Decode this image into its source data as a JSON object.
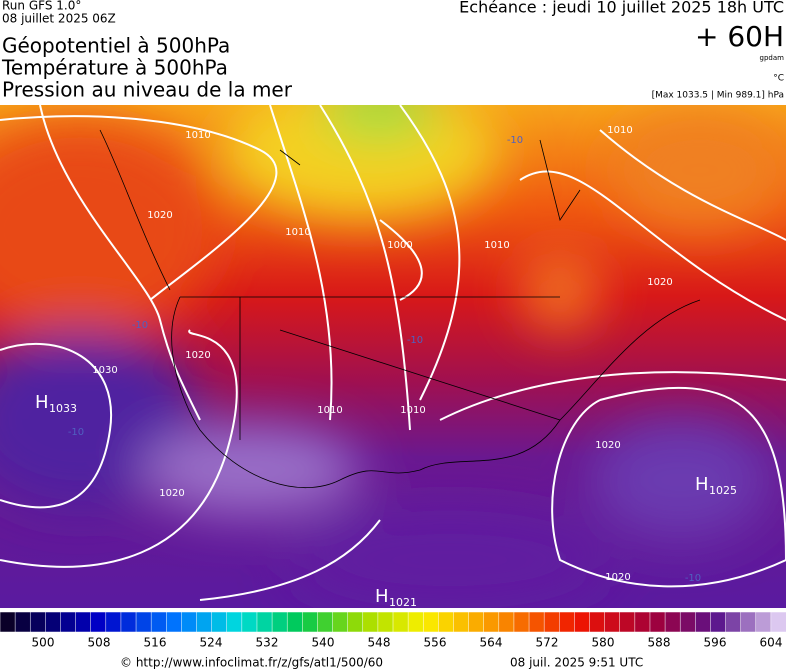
{
  "header": {
    "run": "Run GFS 1.0°",
    "run_date": "08 juillet 2025 06Z",
    "titles": [
      "Géopotentiel à 500hPa",
      "Température à 500hPa",
      "Pression au niveau de la mer"
    ],
    "echeance": "Echéance : jeudi 10 juillet 2025 18h UTC",
    "lead": "+ 60H",
    "unit_geo": "gpdam",
    "unit_temp": "°C",
    "range": "[Max 1033.5 | Min 989.1] hPa"
  },
  "map": {
    "isobar_labels": [
      "1010",
      "1020",
      "1010",
      "1000",
      "1010",
      "1020",
      "1010",
      "1020",
      "1030",
      "1010",
      "1010",
      "1020",
      "1020",
      "1020"
    ],
    "temp_labels": [
      "-10",
      "-10",
      "-10",
      "-10",
      "-10"
    ],
    "centers": [
      {
        "letter": "H",
        "value": "1033"
      },
      {
        "letter": "H",
        "value": "1025"
      },
      {
        "letter": "H",
        "value": "1021"
      }
    ]
  },
  "colorbar": {
    "labels": [
      500,
      508,
      516,
      524,
      532,
      540,
      548,
      556,
      564,
      572,
      580,
      588,
      596,
      604
    ]
  },
  "footer": {
    "source": "© http://www.infoclimat.fr/z/gfs/atl1/500/60",
    "generated": "08 juil. 2025  9:51 UTC"
  }
}
